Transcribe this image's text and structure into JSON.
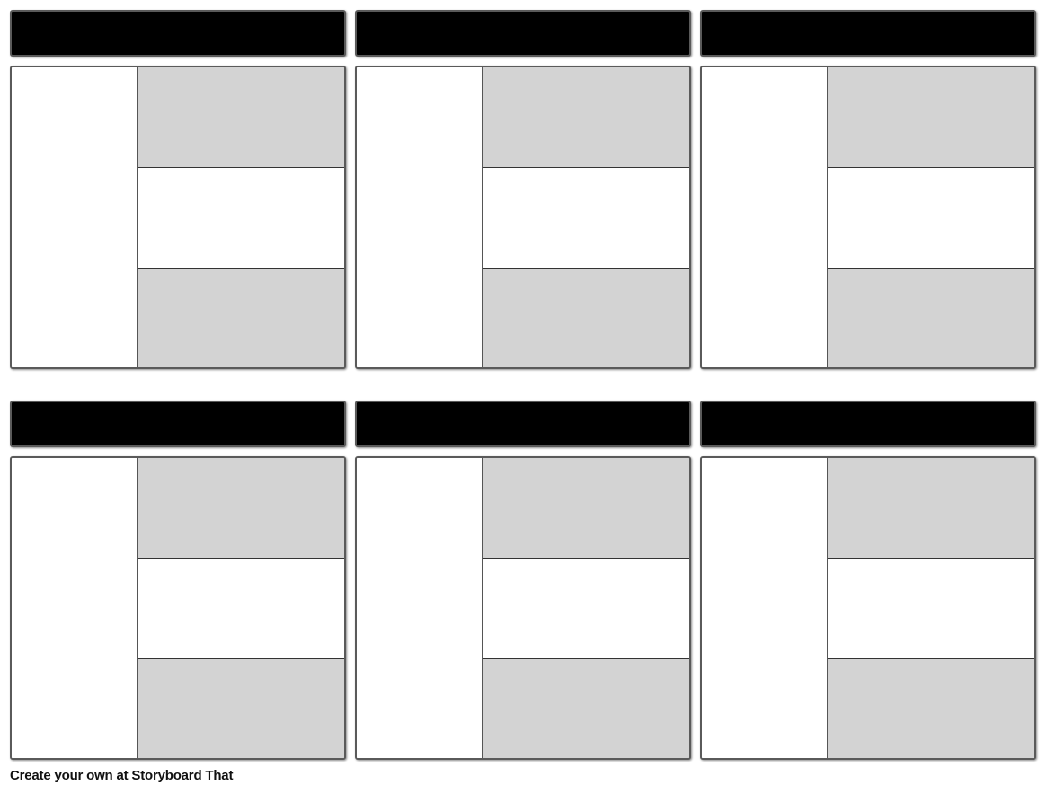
{
  "footer": {
    "text": "Create your own at Storyboard That"
  }
}
